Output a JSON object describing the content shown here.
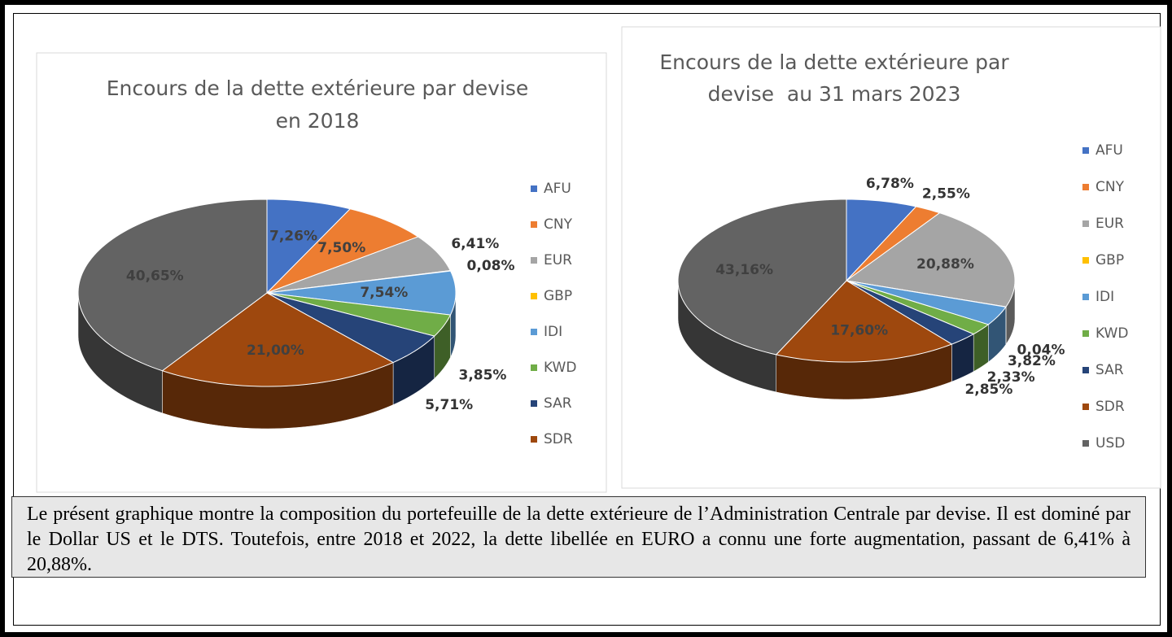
{
  "chart_data": [
    {
      "type": "pie",
      "title": [
        "Encours de la dette extérieure par devise",
        "en 2018"
      ],
      "categories": [
        "AFU",
        "CNY",
        "EUR",
        "GBP",
        "IDI",
        "KWD",
        "SAR",
        "SDR",
        null
      ],
      "values": [
        7.26,
        7.5,
        6.41,
        0.08,
        7.54,
        3.85,
        5.71,
        21.0,
        40.65
      ],
      "value_labels": [
        "7,26%",
        "7,50%",
        "6,41%",
        "0,08%",
        "7,54%",
        "3,85%",
        "5,71%",
        "21,00%",
        "40,65%"
      ],
      "colors": [
        "#4472c4",
        "#ed7d31",
        "#a5a5a5",
        "#ffc000",
        "#5b9bd5",
        "#70ad47",
        "#264478",
        "#9e480e",
        "#636363"
      ],
      "legend": "right"
    },
    {
      "type": "pie",
      "title": [
        "Encours de la dette extérieure par",
        "devise  au 31 mars 2023"
      ],
      "categories": [
        "AFU",
        "CNY",
        "EUR",
        "GBP",
        "IDI",
        "KWD",
        "SAR",
        "SDR",
        "USD"
      ],
      "values": [
        6.78,
        2.55,
        20.88,
        0.04,
        3.82,
        2.33,
        2.85,
        17.6,
        43.16
      ],
      "value_labels": [
        "6,78%",
        "2,55%",
        "20,88%",
        "0,04%",
        "3,82%",
        "2,33%",
        "2,85%",
        "17,60%",
        "43,16%"
      ],
      "colors": [
        "#4472c4",
        "#ed7d31",
        "#a5a5a5",
        "#ffc000",
        "#5b9bd5",
        "#70ad47",
        "#264478",
        "#9e480e",
        "#636363"
      ],
      "legend": "right"
    }
  ],
  "text": "Le présent graphique montre la composition du portefeuille de la dette extérieure de l’Administration Centrale par devise. Il est dominé par le Dollar US et le DTS. Toutefois, entre 2018 et 2022, la dette libellée en EURO a connu une forte augmentation, passant de 6,41% à 20,88%."
}
